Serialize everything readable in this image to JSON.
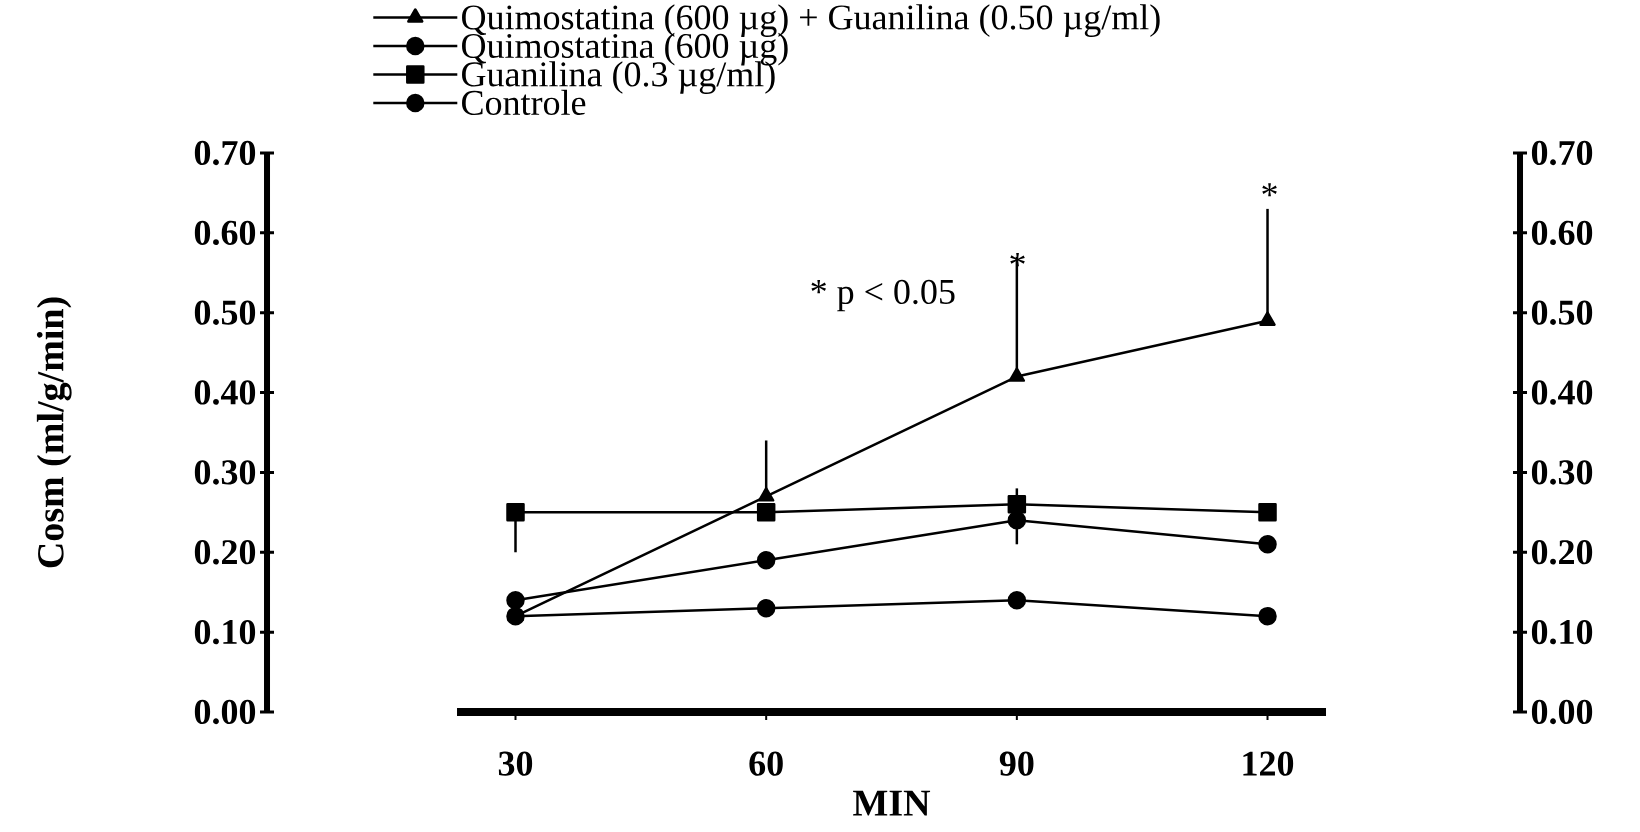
{
  "chart_data": {
    "type": "line",
    "x": [
      30,
      60,
      90,
      120
    ],
    "xlim": [
      23,
      127
    ],
    "xticks": [
      30,
      60,
      90,
      120
    ],
    "ylim": [
      0,
      0.7
    ],
    "yticks": [
      {
        "value": 0,
        "label": "0.00"
      },
      {
        "value": 0.1,
        "label": "0.10"
      },
      {
        "value": 0.2,
        "label": "0.20"
      },
      {
        "value": 0.3,
        "label": "0.30"
      },
      {
        "value": 0.4,
        "label": "0.40"
      },
      {
        "value": 0.5,
        "label": "0.50"
      },
      {
        "value": 0.6,
        "label": "0.60"
      },
      {
        "value": 0.7,
        "label": "0.70"
      }
    ],
    "y2lim": [
      0,
      0.7
    ],
    "y2ticks": [
      {
        "value": 0,
        "label": "0.00"
      },
      {
        "value": 0.1,
        "label": "0.10"
      },
      {
        "value": 0.2,
        "label": "0.20"
      },
      {
        "value": 0.3,
        "label": "0.30"
      },
      {
        "value": 0.4,
        "label": "0.40"
      },
      {
        "value": 0.5,
        "label": "0.50"
      },
      {
        "value": 0.6,
        "label": "0.60"
      },
      {
        "value": 0.7,
        "label": "0.70"
      }
    ],
    "xlabel": "MIN",
    "ylabel": "Cosm (ml/g/min)",
    "legend": "top left",
    "grid": false,
    "series": [
      {
        "name": "Quimostatina (600 µg) + Guanilina (0.50 µg/ml)",
        "color": "#000000",
        "marker": "triangle",
        "values": [
          0.12,
          0.27,
          0.42,
          0.49
        ],
        "errors": [
          null,
          [
            0.27,
            0.34
          ],
          [
            0.42,
            0.57
          ],
          [
            0.49,
            0.63
          ]
        ]
      },
      {
        "name": "Quimostatina (600 µg)",
        "color": "#000000",
        "marker": "circle",
        "values": [
          0.14,
          0.19,
          0.24,
          0.21
        ],
        "errors": [
          null,
          null,
          [
            0.21,
            0.28
          ],
          null
        ]
      },
      {
        "name": "Guanilina (0.3 µg/ml)",
        "color": "#000000",
        "marker": "square",
        "values": [
          0.25,
          0.25,
          0.26,
          0.25
        ],
        "errors": [
          [
            0.2,
            0.25
          ],
          null,
          null,
          null
        ]
      },
      {
        "name": "Controle",
        "color": "#000000",
        "marker": "circle",
        "values": [
          0.12,
          0.13,
          0.14,
          0.12
        ]
      }
    ],
    "annotations": [
      "* p < 0.05",
      "*",
      "*"
    ]
  }
}
